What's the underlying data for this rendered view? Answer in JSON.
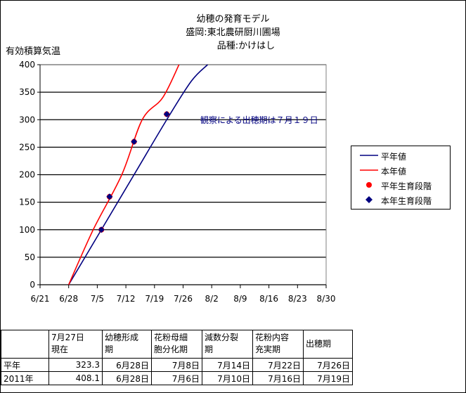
{
  "chart_data": {
    "type": "line",
    "title": [
      "幼穂の発育モデル",
      "盛岡:東北農研厨川圃場",
      "品種:かけはし"
    ],
    "ylabel": "有効積算気温",
    "xlabel": "",
    "x_ticks": [
      "6/21",
      "6/28",
      "7/5",
      "7/12",
      "7/19",
      "7/26",
      "8/2",
      "8/9",
      "8/16",
      "8/23",
      "8/30"
    ],
    "y_ticks": [
      "0",
      "50",
      "100",
      "150",
      "200",
      "250",
      "300",
      "350",
      "400"
    ],
    "xlim": [
      "6/21",
      "8/30"
    ],
    "ylim": [
      0,
      400
    ],
    "grid": "horizontal",
    "legend_position": "right",
    "series": [
      {
        "name": "平年値",
        "kind": "line",
        "color": "#000080",
        "points": [
          [
            "6/28",
            0
          ],
          [
            "7/6",
            100
          ],
          [
            "7/14",
            200
          ],
          [
            "7/22",
            300
          ],
          [
            "7/28",
            370
          ],
          [
            "8/1",
            400
          ]
        ]
      },
      {
        "name": "本年値",
        "kind": "line",
        "color": "#ff0000",
        "points": [
          [
            "6/28",
            0
          ],
          [
            "7/4",
            100
          ],
          [
            "7/11",
            200
          ],
          [
            "7/16",
            300
          ],
          [
            "7/21",
            340
          ],
          [
            "7/25",
            400
          ]
        ]
      },
      {
        "name": "平年生育段階",
        "kind": "marker",
        "marker": "circle",
        "color": "#ff0000",
        "points": [
          [
            "7/6",
            100
          ],
          [
            "7/8",
            160
          ],
          [
            "7/14",
            260
          ],
          [
            "7/22",
            310
          ]
        ]
      },
      {
        "name": "本年生育段階",
        "kind": "marker",
        "marker": "diamond",
        "color": "#000080",
        "points": [
          [
            "7/6",
            100
          ],
          [
            "7/8",
            160
          ],
          [
            "7/14",
            260
          ],
          [
            "7/22",
            310
          ]
        ]
      }
    ],
    "annotation": "観察による出穂期は７月１９日"
  },
  "table": {
    "headers": [
      [
        "",
        ""
      ],
      [
        "7月27日",
        "現在"
      ],
      [
        "幼穂形成",
        "期"
      ],
      [
        "花粉母細",
        "胞分化期"
      ],
      [
        "減数分裂",
        "期"
      ],
      [
        "花粉内容",
        "充実期"
      ],
      [
        "出穂期",
        ""
      ]
    ],
    "rows": [
      {
        "label": "平年",
        "cells": [
          "323.3",
          "6月28日",
          "7月8日",
          "7月14日",
          "7月22日",
          "7月26日"
        ]
      },
      {
        "label": "2011年",
        "cells": [
          "408.1",
          "6月28日",
          "7月6日",
          "7月10日",
          "7月16日",
          "7月19日"
        ]
      }
    ]
  }
}
